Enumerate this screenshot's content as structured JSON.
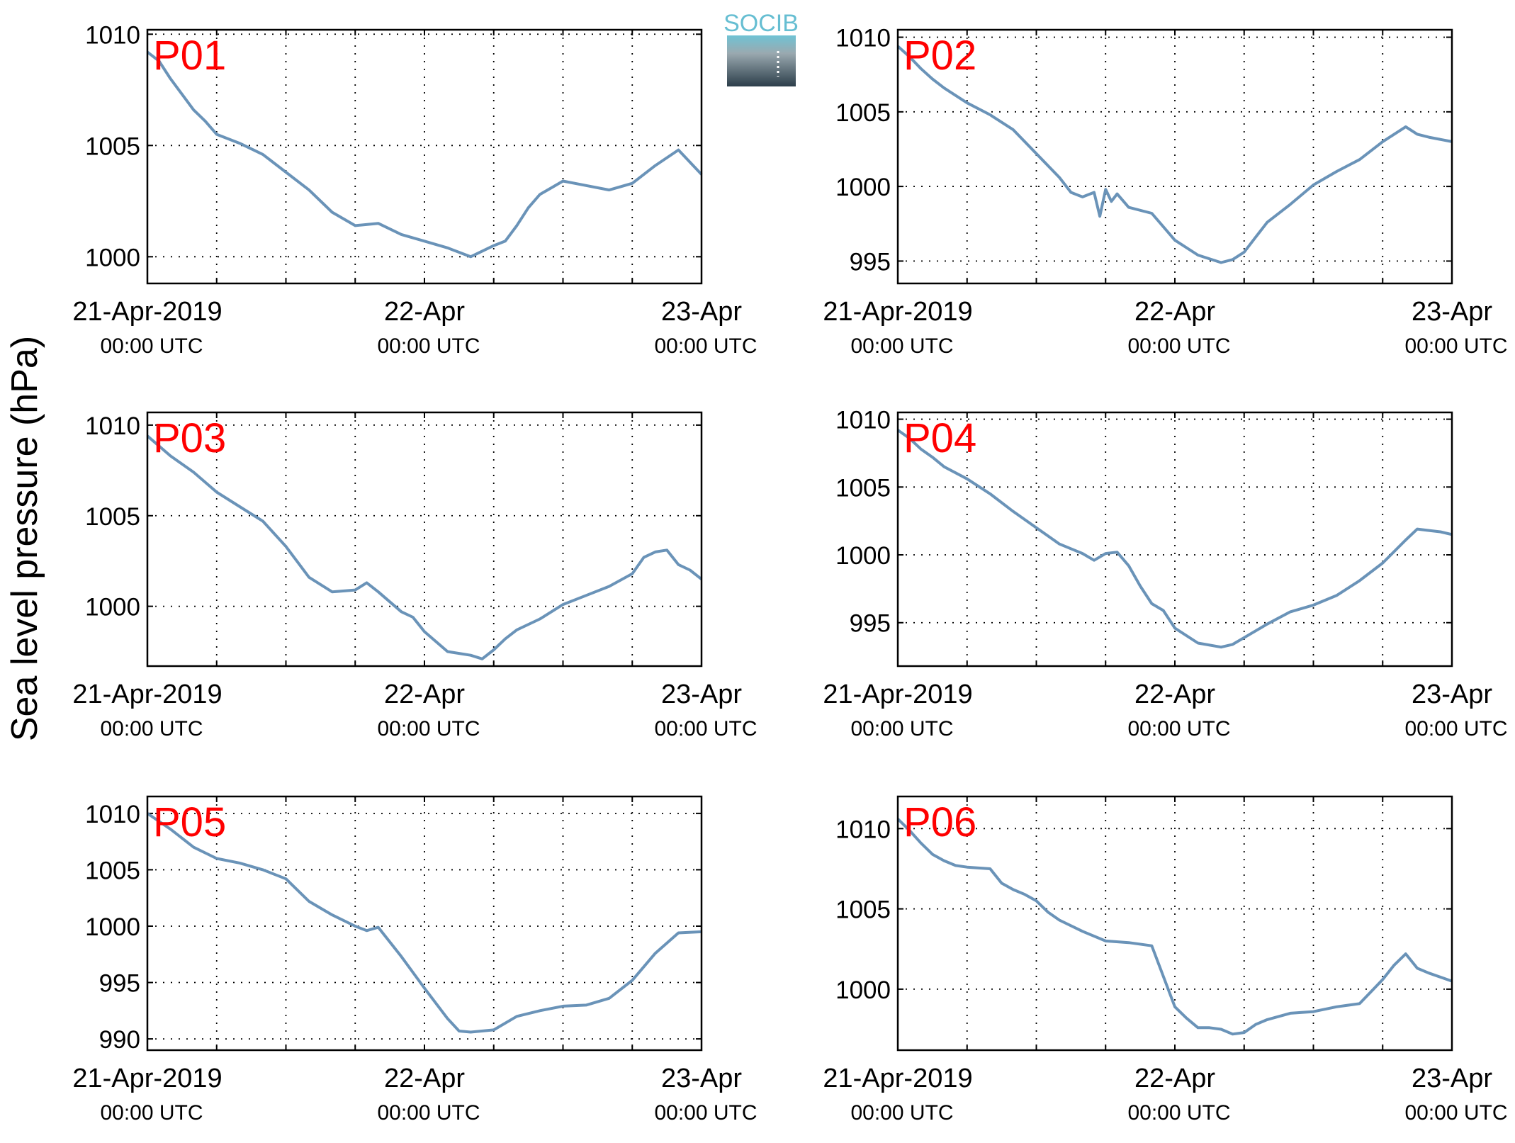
{
  "figure": {
    "ylabel": "Sea level pressure (hPa)",
    "logo_text": "SOCIB",
    "line_color": "#6a93b8",
    "label_color": "#ff0000"
  },
  "x_tick_labels": [
    {
      "date": "21-Apr-2019",
      "time": "00:00 UTC"
    },
    {
      "date": "22-Apr",
      "time": "00:00 UTC"
    },
    {
      "date": "23-Apr",
      "time": "00:00 UTC"
    }
  ],
  "chart_data": [
    {
      "type": "line",
      "label": "P01",
      "xlim": [
        "2019-04-21T00:00",
        "2019-04-23T00:00"
      ],
      "ylim": [
        998.8,
        1010.2
      ],
      "yticks": [
        1000,
        1005,
        1010
      ],
      "grid": true,
      "x_hours": [
        0,
        1,
        2,
        3,
        4,
        5,
        6,
        8,
        10,
        12,
        14,
        16,
        18,
        20,
        22,
        24,
        26,
        28,
        30,
        31,
        32,
        33,
        34,
        35,
        36,
        38,
        40,
        42,
        44,
        46,
        48
      ],
      "y": [
        1009.2,
        1008.8,
        1008.0,
        1007.3,
        1006.6,
        1006.1,
        1005.5,
        1005.1,
        1004.6,
        1003.8,
        1003.0,
        1002.0,
        1001.4,
        1001.5,
        1001.0,
        1000.7,
        1000.4,
        1000.0,
        1000.5,
        1000.7,
        1001.4,
        1002.2,
        1002.8,
        1003.1,
        1003.4,
        1003.2,
        1003.0,
        1003.3,
        1004.1,
        1004.8,
        1003.7
      ]
    },
    {
      "type": "line",
      "label": "P02",
      "xlim": [
        "2019-04-21T00:00",
        "2019-04-23T00:00"
      ],
      "ylim": [
        993.5,
        1010.5
      ],
      "yticks": [
        995,
        1000,
        1005,
        1010
      ],
      "grid": true,
      "x_hours": [
        0,
        1,
        2,
        3,
        4,
        6,
        8,
        10,
        12,
        14,
        15,
        16,
        17,
        17.5,
        18,
        18.5,
        19,
        20,
        22,
        24,
        26,
        28,
        29,
        30,
        31,
        32,
        34,
        36,
        38,
        40,
        42,
        44,
        45,
        46,
        48
      ],
      "y": [
        1009.4,
        1008.7,
        1007.9,
        1007.2,
        1006.6,
        1005.6,
        1004.8,
        1003.8,
        1002.2,
        1000.6,
        999.6,
        999.3,
        999.6,
        998.0,
        999.8,
        999.0,
        999.5,
        998.6,
        998.2,
        996.4,
        995.4,
        994.9,
        995.1,
        995.6,
        996.6,
        997.6,
        998.8,
        1000.1,
        1001.0,
        1001.8,
        1003.0,
        1004.0,
        1003.5,
        1003.3,
        1003.0
      ]
    },
    {
      "type": "line",
      "label": "P03",
      "xlim": [
        "2019-04-21T00:00",
        "2019-04-23T00:00"
      ],
      "ylim": [
        996.7,
        1010.7
      ],
      "yticks": [
        1000,
        1005,
        1010
      ],
      "grid": true,
      "x_hours": [
        0,
        2,
        4,
        6,
        8,
        10,
        12,
        14,
        16,
        18,
        19,
        20,
        22,
        23,
        24,
        26,
        28,
        29,
        30,
        31,
        32,
        34,
        36,
        38,
        40,
        42,
        43,
        44,
        45,
        46,
        47,
        48
      ],
      "y": [
        1009.4,
        1008.3,
        1007.4,
        1006.3,
        1005.5,
        1004.7,
        1003.3,
        1001.6,
        1000.8,
        1000.9,
        1001.3,
        1000.8,
        999.7,
        999.4,
        998.6,
        997.5,
        997.3,
        997.1,
        997.6,
        998.2,
        998.7,
        999.3,
        1000.1,
        1000.6,
        1001.1,
        1001.8,
        1002.7,
        1003.0,
        1003.1,
        1002.3,
        1002.0,
        1001.5
      ]
    },
    {
      "type": "line",
      "label": "P04",
      "xlim": [
        "2019-04-21T00:00",
        "2019-04-23T00:00"
      ],
      "ylim": [
        991.8,
        1010.5
      ],
      "yticks": [
        995,
        1000,
        1005,
        1010
      ],
      "grid": true,
      "x_hours": [
        0,
        1,
        2,
        3,
        4,
        6,
        8,
        10,
        12,
        14,
        16,
        17,
        18,
        19,
        20,
        21,
        22,
        23,
        24,
        26,
        28,
        29,
        30,
        32,
        34,
        36,
        38,
        40,
        42,
        44,
        45,
        46,
        47,
        48
      ],
      "y": [
        1009.2,
        1008.6,
        1007.8,
        1007.2,
        1006.5,
        1005.6,
        1004.5,
        1003.2,
        1002.0,
        1000.8,
        1000.1,
        999.6,
        1000.1,
        1000.2,
        999.2,
        997.7,
        996.4,
        995.9,
        994.6,
        993.5,
        993.2,
        993.4,
        993.9,
        994.9,
        995.8,
        996.3,
        997.0,
        998.1,
        999.4,
        1001.1,
        1001.9,
        1001.8,
        1001.7,
        1001.5
      ]
    },
    {
      "type": "line",
      "label": "P05",
      "xlim": [
        "2019-04-21T00:00",
        "2019-04-23T00:00"
      ],
      "ylim": [
        989.0,
        1011.5
      ],
      "yticks": [
        990,
        995,
        1000,
        1005,
        1010
      ],
      "grid": true,
      "x_hours": [
        0,
        2,
        4,
        6,
        8,
        10,
        12,
        14,
        16,
        18,
        19,
        20,
        22,
        24,
        26,
        27,
        28,
        30,
        32,
        34,
        36,
        38,
        40,
        42,
        44,
        46,
        48
      ],
      "y": [
        1010.0,
        1008.6,
        1007.0,
        1006.0,
        1005.6,
        1005.0,
        1004.2,
        1002.2,
        1001.0,
        1000.0,
        999.6,
        999.9,
        997.3,
        994.5,
        991.8,
        990.7,
        990.6,
        990.8,
        992.0,
        992.5,
        992.9,
        993.0,
        993.6,
        995.2,
        997.6,
        999.4,
        999.5
      ]
    },
    {
      "type": "line",
      "label": "P06",
      "xlim": [
        "2019-04-21T00:00",
        "2019-04-23T00:00"
      ],
      "ylim": [
        996.2,
        1012.0
      ],
      "yticks": [
        1000,
        1005,
        1010
      ],
      "grid": true,
      "x_hours": [
        0,
        1,
        2,
        3,
        4,
        5,
        6,
        8,
        9,
        10,
        11,
        12,
        13,
        14,
        16,
        18,
        20,
        22,
        24,
        25,
        26,
        27,
        28,
        29,
        30,
        31,
        32,
        34,
        36,
        38,
        40,
        42,
        43,
        44,
        45,
        46,
        48
      ],
      "y": [
        1010.6,
        1009.9,
        1009.1,
        1008.4,
        1008.0,
        1007.7,
        1007.6,
        1007.5,
        1006.6,
        1006.2,
        1005.9,
        1005.5,
        1004.8,
        1004.3,
        1003.6,
        1003.0,
        1002.9,
        1002.7,
        998.9,
        998.2,
        997.6,
        997.6,
        997.5,
        997.2,
        997.3,
        997.8,
        998.1,
        998.5,
        998.6,
        998.9,
        999.1,
        1000.6,
        1001.5,
        1002.2,
        1001.3,
        1001.0,
        1000.5
      ]
    }
  ]
}
